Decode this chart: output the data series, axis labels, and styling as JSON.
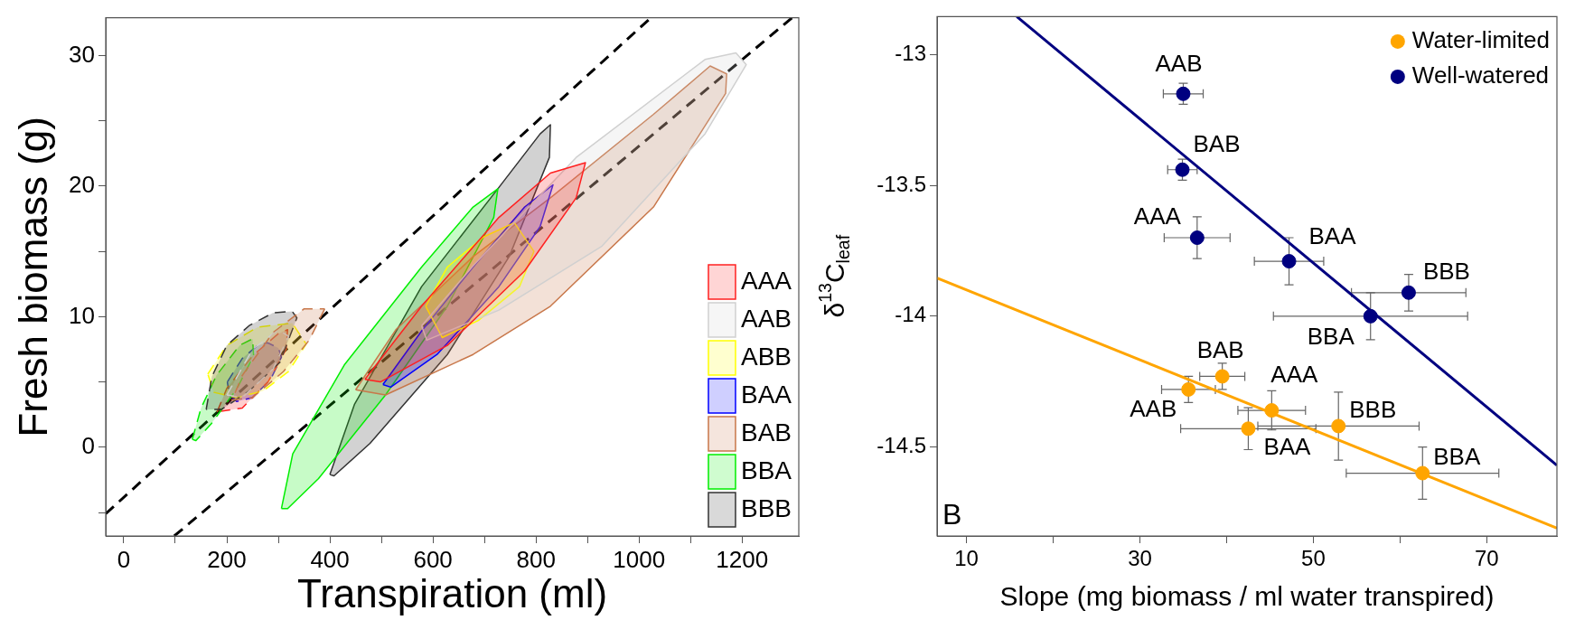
{
  "chart_data": [
    {
      "type": "line",
      "xlabel": "Transpiration (ml)",
      "ylabel": "Fresh biomass (g)",
      "xlim": [
        -35,
        1310
      ],
      "ylim": [
        -6.8,
        32.9
      ],
      "xticks": [
        0,
        {
          "value": 100,
          "label": null
        },
        200,
        {
          "value": 300,
          "label": null
        },
        400,
        {
          "value": 500,
          "label": null
        },
        600,
        {
          "value": 700,
          "label": null
        },
        800,
        {
          "value": 900,
          "label": null
        },
        1000,
        {
          "value": 1100,
          "label": null
        },
        1200
      ],
      "yticks": [
        {
          "value": -5,
          "label": null
        },
        0,
        {
          "value": 5,
          "label": null
        },
        10,
        {
          "value": 15,
          "label": null
        },
        20,
        {
          "value": 25,
          "label": null
        },
        30
      ],
      "legend": "bottom right",
      "marker": "none",
      "series": [
        {
          "type": "area",
          "color": "#c8774a",
          "line_style": "dashed",
          "x": [
            390,
            360,
            310,
            250,
            210,
            230,
            290,
            350,
            390
          ],
          "values": [
            10.6,
            8.2,
            5.8,
            3.8,
            3.6,
            5.5,
            8.8,
            10.6,
            10.6
          ]
        },
        {
          "type": "area",
          "color": "#d0d0d0",
          "line_style": "dashed",
          "x": [
            200,
            250,
            300,
            320,
            290,
            230,
            200
          ],
          "values": [
            4.0,
            7.5,
            9.0,
            8.5,
            6.0,
            3.8,
            4.0
          ]
        },
        {
          "type": "area",
          "color": "#333333",
          "line_style": "dashed",
          "x": [
            160,
            171,
            200,
            243,
            290,
            327,
            336,
            303,
            243,
            190,
            160
          ],
          "values": [
            2.9,
            5.4,
            7.8,
            9.3,
            10.3,
            10.4,
            9.9,
            6.5,
            4.3,
            2.9,
            2.9
          ]
        },
        {
          "type": "area",
          "color": "#ffff00",
          "line_style": "dashed",
          "x": [
            163,
            200,
            260,
            327,
            354,
            320,
            270,
            219,
            175,
            163
          ],
          "values": [
            5.6,
            7.8,
            9.2,
            9.5,
            7.9,
            5.8,
            4.3,
            3.8,
            4.2,
            5.6
          ]
        },
        {
          "type": "area",
          "color": "#00ee00",
          "line_style": "dashed",
          "x": [
            133,
            150,
            180,
            225,
            250,
            252,
            220,
            170,
            140,
            133
          ],
          "values": [
            0.6,
            3,
            5.5,
            7.8,
            8.3,
            7.0,
            4.5,
            1.8,
            0.5,
            0.6
          ]
        },
        {
          "type": "area",
          "color": "#ff2020",
          "line_style": "dashed",
          "x": [
            181,
            200,
            250,
            300,
            318,
            315,
            280,
            230,
            181
          ],
          "values": [
            2.7,
            4.5,
            7.0,
            8.7,
            9.0,
            7.5,
            5.0,
            3.0,
            2.7
          ]
        },
        {
          "type": "area",
          "color": "#0000ff",
          "line_style": "dashed",
          "x": [
            201,
            230,
            260,
            279,
            300,
            306,
            285,
            250,
            219,
            205,
            201
          ],
          "values": [
            5.0,
            6.8,
            7.8,
            8.0,
            7.6,
            6.9,
            5.2,
            3.8,
            3.5,
            4.0,
            5.0
          ]
        },
        {
          "type": "area",
          "name": "AAA",
          "color": "#ff2020",
          "line_style": "solid",
          "x": [
            468,
            578,
            728,
            828,
            896,
            878,
            778,
            628,
            498,
            468
          ],
          "values": [
            5.2,
            10.8,
            17.6,
            21.0,
            21.8,
            19.1,
            13.5,
            7.8,
            5.0,
            5.2
          ]
        },
        {
          "type": "area",
          "name": "AAB",
          "color": "#d0d0d0",
          "line_style": "solid",
          "x": [
            578,
            678,
            878,
            1128,
            1188,
            1208,
            1128,
            928,
            728,
            588,
            578
          ],
          "values": [
            9.3,
            13.9,
            22.2,
            29.7,
            30.2,
            29.3,
            24.0,
            15.4,
            10.5,
            8.2,
            9.3
          ]
        },
        {
          "type": "area",
          "name": "ABB",
          "color": "#ffff00",
          "line_style": "solid",
          "x": [
            586,
            628,
            698,
            758,
            796,
            768,
            688,
            618,
            586
          ],
          "values": [
            10.8,
            13.8,
            16.1,
            17.2,
            15.0,
            12.3,
            9.7,
            8.4,
            10.8
          ]
        },
        {
          "type": "area",
          "name": "BAA",
          "color": "#0000ff",
          "line_style": "solid",
          "x": [
            503,
            578,
            678,
            778,
            833,
            808,
            728,
            608,
            518,
            503
          ],
          "values": [
            4.8,
            8.9,
            13.8,
            18.4,
            20.1,
            16.9,
            12.3,
            7.1,
            4.6,
            4.8
          ]
        },
        {
          "type": "area",
          "name": "BAB",
          "color": "#c8774a",
          "line_style": "solid",
          "x": [
            450,
            528,
            678,
            828,
            1028,
            1138,
            1170,
            1168,
            1028,
            828,
            678,
            508,
            450
          ],
          "values": [
            4.4,
            9.0,
            14.6,
            19.1,
            25.5,
            29.2,
            28.6,
            27.1,
            18.4,
            10.8,
            7.1,
            4.0,
            4.4
          ]
        },
        {
          "type": "area",
          "name": "BBA",
          "color": "#00ee00",
          "line_style": "solid",
          "x": [
            306,
            328,
            428,
            578,
            678,
            726,
            718,
            628,
            508,
            378,
            318,
            306
          ],
          "values": [
            -4.7,
            -0.5,
            6.3,
            13.8,
            18.4,
            19.8,
            17.6,
            10.8,
            4.0,
            -2.4,
            -4.7,
            -4.7
          ]
        },
        {
          "type": "area",
          "name": "BBB",
          "color": "#333333",
          "line_style": "solid",
          "x": [
            400,
            448,
            578,
            728,
            808,
            828,
            826,
            748,
            628,
            478,
            408,
            400
          ],
          "values": [
            -2.1,
            3.3,
            12.3,
            19.9,
            24.0,
            24.7,
            22.2,
            14.6,
            7.1,
            0.3,
            -2.2,
            -2.1
          ]
        },
        {
          "color": "#000000",
          "line_style": "dashed",
          "x": [
            -35,
            1023
          ],
          "values": [
            -5.1,
            32.9
          ]
        },
        {
          "color": "#000000",
          "line_style": "dashed",
          "x": [
            98,
            1297
          ],
          "values": [
            -6.8,
            32.9
          ]
        }
      ]
    },
    {
      "type": "scatter",
      "xlabel": "Slope (mg biomass / ml water transpired)",
      "ylabel": "δ$^{13}$C$_{leaf}$",
      "xlim": [
        6.6,
        78.1
      ],
      "ylim": [
        -14.84,
        -12.855
      ],
      "xticks": [
        10,
        {
          "value": 20,
          "label": null
        },
        30,
        {
          "value": 40,
          "label": null
        },
        50,
        {
          "value": 60,
          "label": null
        },
        70
      ],
      "yticks": [
        -13,
        -13.5,
        -14,
        -14.5
      ],
      "legend": "top right",
      "marker": "circle",
      "series": [
        {
          "name": "Water-limited",
          "color": "#ffa500",
          "x": [
            39.5,
            35.6,
            45.2,
            42.5,
            52.9,
            62.6
          ],
          "values": [
            -14.23,
            -14.28,
            -14.36,
            -14.43,
            -14.42,
            -14.6
          ],
          "errors": [
            0.05,
            0.05,
            0.075,
            0.08,
            0.13,
            0.1
          ],
          "xerrors": [
            2.6,
            3.1,
            3.9,
            7.8,
            9.3,
            8.8
          ]
        },
        {
          "name": "Well-watered",
          "color": "#000080",
          "x": [
            35.0,
            34.9,
            36.6,
            47.2,
            61.0,
            56.6
          ],
          "values": [
            -13.15,
            -13.44,
            -13.7,
            -13.79,
            -13.91,
            -14.0
          ],
          "errors": [
            0.04,
            0.04,
            0.08,
            0.09,
            0.07,
            0.09
          ],
          "xerrors": [
            2.3,
            1.7,
            3.8,
            4.0,
            6.6,
            11.2
          ]
        },
        {
          "type": "line",
          "marker": "none",
          "color": "#ffa500",
          "line_style": "solid",
          "x": [
            6.6,
            78.1
          ],
          "values": [
            -13.854,
            -14.81
          ]
        },
        {
          "type": "line",
          "marker": "none",
          "color": "#000080",
          "line_style": "solid",
          "x": [
            15.8,
            78.1
          ],
          "values": [
            -12.855,
            -14.57
          ]
        }
      ],
      "annotations": [
        {
          "text": "BAB",
          "x": 39.5,
          "y": -14.23
        },
        {
          "text": "AAB",
          "x": 35.6,
          "y": -14.28
        },
        {
          "text": "AAA",
          "x": 45.2,
          "y": -14.36
        },
        {
          "text": "BAA",
          "x": 42.5,
          "y": -14.43
        },
        {
          "text": "BBB",
          "x": 52.9,
          "y": -14.42
        },
        {
          "text": "BBA",
          "x": 62.6,
          "y": -14.6
        },
        {
          "text": "AAB",
          "x": 35.0,
          "y": -13.15
        },
        {
          "text": "BAB",
          "x": 34.9,
          "y": -13.44
        },
        {
          "text": "AAA",
          "x": 36.6,
          "y": -13.7
        },
        {
          "text": "BAA",
          "x": 47.2,
          "y": -13.79
        },
        {
          "text": "BBB",
          "x": 61.0,
          "y": -13.91
        },
        {
          "text": "BBA",
          "x": 56.6,
          "y": -14.0
        },
        "B"
      ]
    }
  ]
}
